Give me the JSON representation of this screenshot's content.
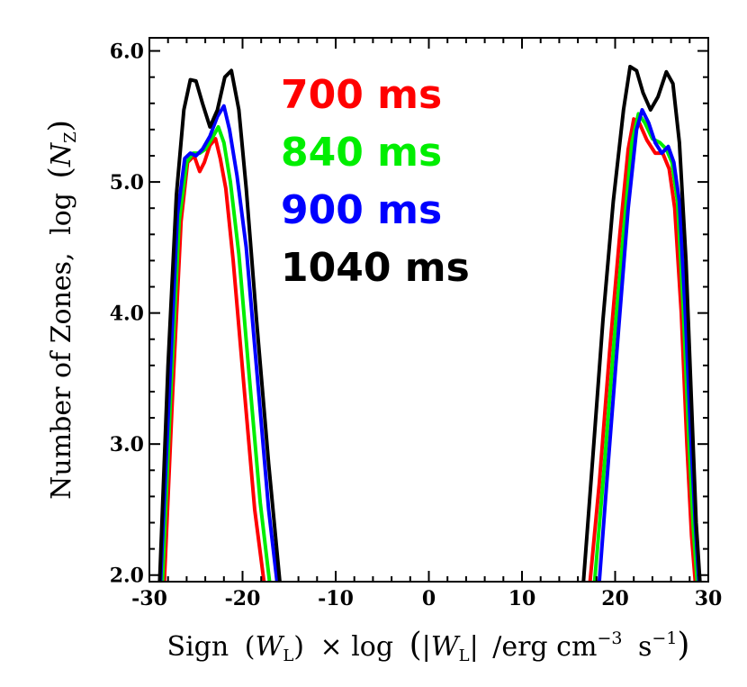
{
  "chart_data": {
    "type": "line",
    "title": "",
    "xlabel": "Sign (W_L) × log (|W_L| /erg cm⁻³ s⁻¹)",
    "xlabel_parts": {
      "sign": "Sign",
      "W": "W",
      "L": "L",
      "times_log": "× log",
      "unit": "/erg cm",
      "exp3": "−3",
      "s": "s",
      "exp1": "−1"
    },
    "ylabel": "Number of Zones, log (N_Z)",
    "ylabel_parts": {
      "text": "Number of Zones,",
      "log": "log",
      "N": "N",
      "Z": "Z"
    },
    "xlim": [
      -30,
      30
    ],
    "ylim": [
      1.95,
      6.1
    ],
    "x_ticks": [
      -30,
      -20,
      -10,
      0,
      10,
      20,
      30
    ],
    "x_tick_labels": [
      "-30",
      "-20",
      "-10",
      "0",
      "10",
      "20",
      "30"
    ],
    "y_ticks": [
      2.0,
      3.0,
      4.0,
      5.0,
      6.0
    ],
    "y_tick_labels": [
      "2.0",
      "3.0",
      "4.0",
      "5.0",
      "6.0"
    ],
    "legend_position": "top-center",
    "series": [
      {
        "name": "700 ms",
        "color": "#ff0000",
        "x": [
          -28.4,
          -27.5,
          -26.6,
          -25.9,
          -25.2,
          -24.6,
          -24.1,
          -23.5,
          -22.9,
          -22.4,
          -21.8,
          -21.0,
          -19.8,
          -18.7,
          -17.7,
          17.3,
          18.3,
          19.4,
          20.5,
          21.4,
          22.0,
          22.6,
          23.4,
          24.3,
          25.1,
          25.8,
          26.4,
          27.1,
          27.7,
          28.2,
          28.6
        ],
        "y": [
          1.95,
          3.4,
          4.7,
          5.15,
          5.2,
          5.08,
          5.15,
          5.28,
          5.33,
          5.18,
          4.95,
          4.4,
          3.4,
          2.5,
          1.95,
          1.95,
          2.7,
          3.7,
          4.6,
          5.25,
          5.48,
          5.45,
          5.32,
          5.22,
          5.22,
          5.1,
          4.8,
          4.0,
          3.0,
          2.3,
          1.95
        ]
      },
      {
        "name": "840 ms",
        "color": "#00ee00",
        "x": [
          -28.6,
          -27.7,
          -26.8,
          -26.0,
          -25.3,
          -24.6,
          -24.0,
          -23.3,
          -22.6,
          -22.0,
          -21.3,
          -20.4,
          -19.2,
          -18.1,
          -17.1,
          17.8,
          18.8,
          19.9,
          21.0,
          21.8,
          22.5,
          23.2,
          24.0,
          24.8,
          25.5,
          26.1,
          26.7,
          27.3,
          27.9,
          28.4,
          28.8
        ],
        "y": [
          1.95,
          3.4,
          4.7,
          5.15,
          5.22,
          5.22,
          5.25,
          5.33,
          5.42,
          5.3,
          5.0,
          4.45,
          3.45,
          2.55,
          1.95,
          1.95,
          2.8,
          3.8,
          4.7,
          5.3,
          5.52,
          5.45,
          5.33,
          5.3,
          5.25,
          5.15,
          4.85,
          4.05,
          3.05,
          2.35,
          1.95
        ]
      },
      {
        "name": "900 ms",
        "color": "#0000ff",
        "x": [
          -28.8,
          -27.8,
          -27.0,
          -26.2,
          -25.6,
          -25.0,
          -24.3,
          -23.5,
          -22.7,
          -22.0,
          -21.4,
          -20.6,
          -19.6,
          -18.4,
          -17.2,
          -16.3,
          18.3,
          19.3,
          20.4,
          21.4,
          22.3,
          22.9,
          23.6,
          24.3,
          25.0,
          25.7,
          26.3,
          26.9,
          27.5,
          28.1,
          28.6,
          29.0
        ],
        "y": [
          1.95,
          3.5,
          4.75,
          5.18,
          5.22,
          5.2,
          5.25,
          5.35,
          5.5,
          5.58,
          5.4,
          5.05,
          4.5,
          3.5,
          2.5,
          1.95,
          1.95,
          2.9,
          3.9,
          4.8,
          5.4,
          5.55,
          5.45,
          5.3,
          5.22,
          5.27,
          5.15,
          4.85,
          4.05,
          3.1,
          2.4,
          1.95
        ]
      },
      {
        "name": "1040 ms",
        "color": "#000000",
        "x": [
          -28.9,
          -28.0,
          -27.1,
          -26.3,
          -25.6,
          -25.0,
          -24.3,
          -23.5,
          -22.7,
          -21.9,
          -21.2,
          -20.4,
          -19.6,
          -18.5,
          -17.2,
          -16.0,
          16.6,
          17.6,
          18.7,
          19.8,
          20.9,
          21.6,
          22.3,
          23.0,
          23.8,
          24.6,
          25.5,
          26.2,
          26.9,
          27.6,
          28.2,
          28.7,
          29.1
        ],
        "y": [
          1.95,
          3.6,
          4.9,
          5.55,
          5.78,
          5.77,
          5.6,
          5.42,
          5.55,
          5.8,
          5.85,
          5.55,
          4.95,
          3.95,
          2.85,
          1.95,
          1.95,
          2.9,
          3.95,
          4.85,
          5.55,
          5.88,
          5.85,
          5.68,
          5.55,
          5.65,
          5.84,
          5.75,
          5.3,
          4.4,
          3.3,
          2.4,
          1.95
        ]
      }
    ]
  }
}
